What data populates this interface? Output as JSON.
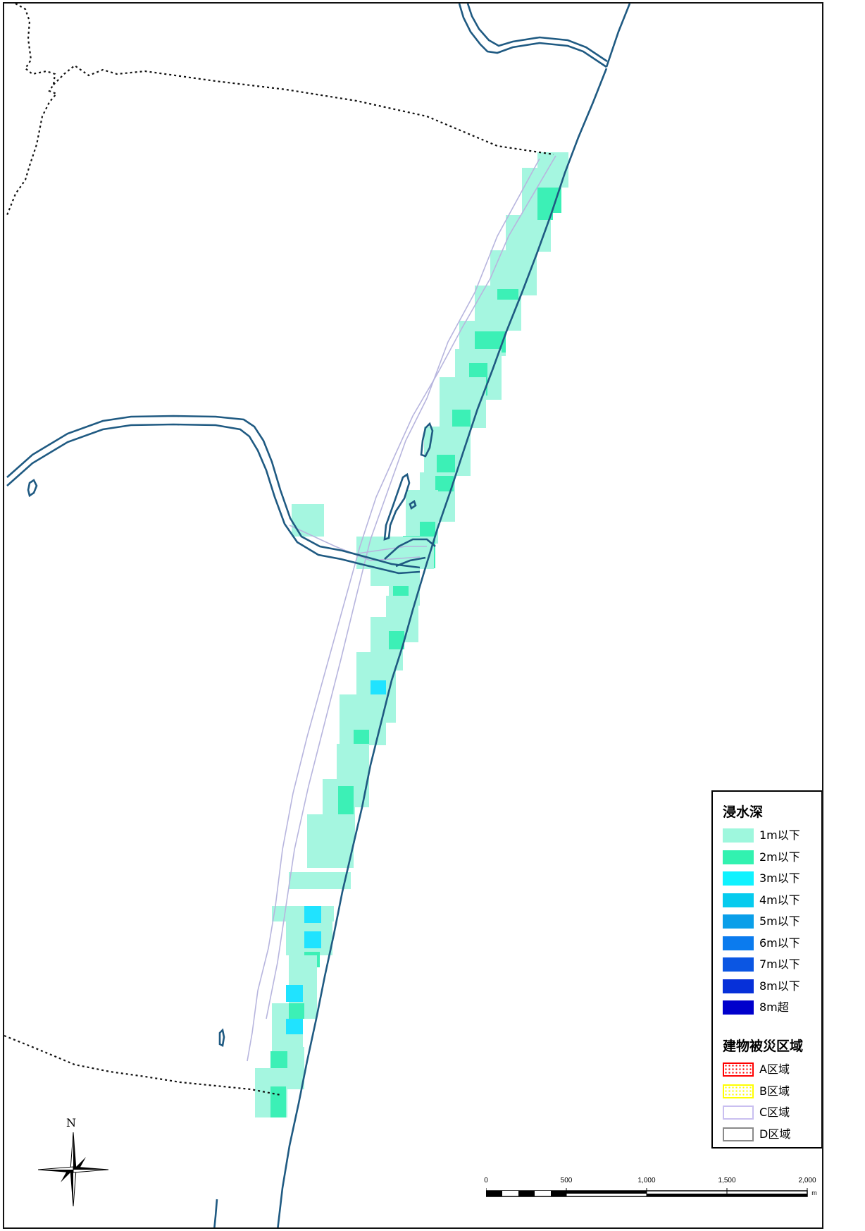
{
  "map": {
    "colors": {
      "water": "#1f5a82",
      "boundary": "#111111",
      "flood_1m": "#a5f6e0",
      "flood_2m": "#3cf0b6",
      "flood_3m": "#20e3ff",
      "road": "#b7b5de"
    }
  },
  "legend": {
    "depth_title": "浸水深",
    "depth_items": [
      {
        "label": "1m以下",
        "color": "#9ef7dd"
      },
      {
        "label": "2m以下",
        "color": "#32f2b0"
      },
      {
        "label": "3m以下",
        "color": "#10f2ff"
      },
      {
        "label": "4m以下",
        "color": "#06cbee"
      },
      {
        "label": "5m以下",
        "color": "#0a9fe9"
      },
      {
        "label": "6m以下",
        "color": "#0b7bee"
      },
      {
        "label": "7m以下",
        "color": "#0b56e3"
      },
      {
        "label": "8m以下",
        "color": "#0630d9"
      },
      {
        "label": "8m超",
        "color": "#0000cc"
      }
    ],
    "building_title": "建物被災区域",
    "building_items": [
      {
        "label": "A区域",
        "color": "#ff0000",
        "style": "dotted"
      },
      {
        "label": "B区域",
        "color": "#ffff00",
        "style": "dotted"
      },
      {
        "label": "C区域",
        "color": "#c9bff0",
        "style": "plain"
      },
      {
        "label": "D区域",
        "color": "#8a8a8a",
        "style": "plain"
      }
    ]
  },
  "scalebar": {
    "ticks": [
      "0",
      "500",
      "1,000",
      "1,500",
      "2,000"
    ],
    "unit": "m"
  },
  "north_arrow": {
    "label": "N",
    "icon": "compass-rose-icon"
  }
}
